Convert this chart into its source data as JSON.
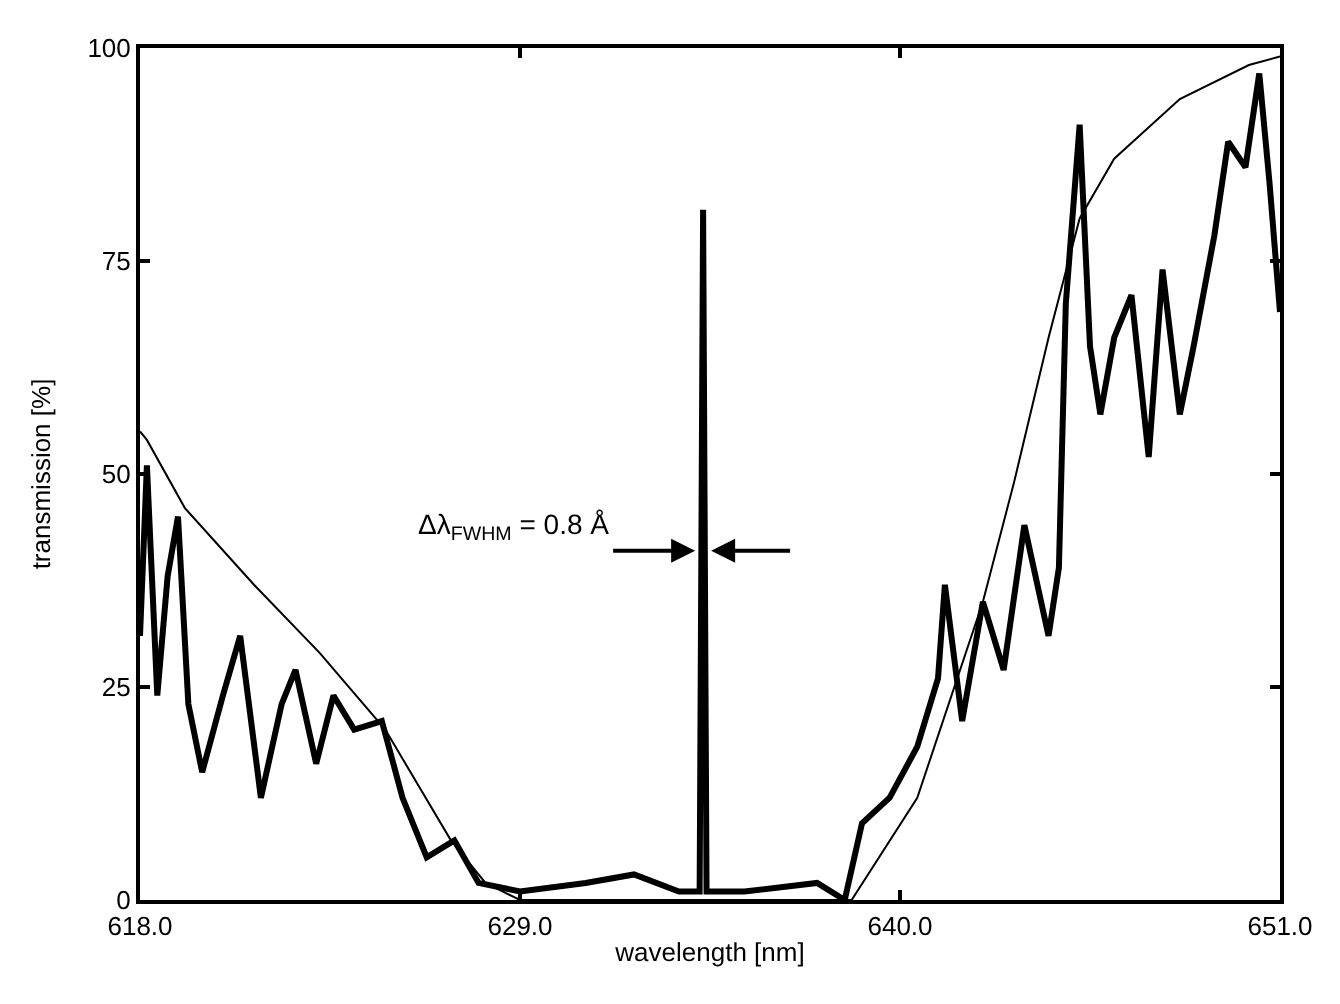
{
  "chart_data": {
    "type": "line",
    "xlabel": "wavelength [nm]",
    "ylabel": "transmission [%]",
    "xlim": [
      618.0,
      651.0
    ],
    "ylim": [
      0,
      100
    ],
    "xticks": [
      {
        "value": 618.0,
        "label": "618.0"
      },
      {
        "value": 629.0,
        "label": "629.0"
      },
      {
        "value": 640.0,
        "label": "640.0"
      },
      {
        "value": 651.0,
        "label": "651.0"
      }
    ],
    "yticks": [
      0,
      25,
      50,
      75,
      100
    ],
    "marker": "none",
    "line_style": "solid",
    "annotations": [
      {
        "text": "Δλ$_{FWHM}$ = 0.8 Å",
        "x": 634.3,
        "y": 41
      }
    ],
    "series": [
      {
        "color": "#000000",
        "x": [
          618.0,
          618.2,
          618.5,
          618.8,
          619.1,
          619.4,
          619.8,
          620.4,
          620.9,
          621.5,
          622.1,
          622.5,
          623.1,
          623.6,
          624.2,
          625.0,
          625.6,
          626.3,
          627.1,
          627.8,
          629.0,
          630.9,
          632.3,
          633.6,
          634.2,
          634.3,
          634.4,
          635.5,
          637.6,
          638.4,
          638.9,
          639.7,
          640.5,
          641.1,
          641.3,
          641.8,
          642.4,
          643.0,
          643.6,
          644.3,
          644.6,
          644.8,
          645.2,
          645.5,
          645.8,
          646.2,
          646.7,
          647.2,
          647.6,
          648.1,
          648.5,
          649.1,
          649.5,
          650.0,
          650.4,
          650.7,
          651.0
        ],
        "values": [
          31,
          51,
          24,
          38,
          45,
          23,
          15,
          24,
          31,
          12,
          23,
          27,
          16,
          24,
          20,
          21,
          12,
          5,
          7,
          2,
          1,
          2,
          3,
          1,
          1,
          81,
          1,
          1,
          2,
          0,
          9,
          12,
          18,
          26,
          37,
          21,
          35,
          27,
          44,
          31,
          39,
          70,
          91,
          65,
          57,
          66,
          71,
          52,
          74,
          57,
          65,
          78,
          89,
          86,
          97,
          84,
          69
        ]
      },
      {
        "color": "#000000",
        "x": [
          618.0,
          618.2,
          619.3,
          621.3,
          623.2,
          625.1,
          627.0,
          628.0,
          629.0,
          638.6,
          640.5,
          642.4,
          643.3,
          644.3,
          645.2,
          646.2,
          648.1,
          650.1,
          651.0
        ],
        "values": [
          55,
          54,
          46,
          37,
          29,
          20,
          7,
          2,
          0,
          0,
          12,
          35,
          49,
          66,
          80,
          87,
          94,
          98,
          99
        ]
      }
    ]
  }
}
